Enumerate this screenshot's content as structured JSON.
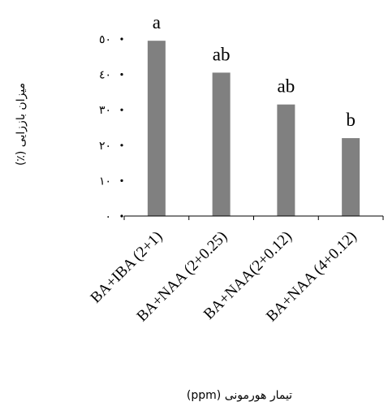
{
  "chart_data": {
    "type": "bar",
    "categories": [
      "BA+IBA (2+1)",
      "BA+NAA (2+0.25)",
      "BA+NAA(2+0.12)",
      "BA+NAA (4+0.12)"
    ],
    "values": [
      49.5,
      40.5,
      31.5,
      22
    ],
    "significance_letters": [
      "a",
      "ab",
      "ab",
      "b"
    ],
    "y_ticks": [
      0,
      10,
      20,
      30,
      40,
      50
    ],
    "y_tick_labels": [
      "٠",
      "١٠",
      "٢٠",
      "٣٠",
      "٤٠",
      "٥٠"
    ],
    "ylim": [
      0,
      50
    ],
    "xlabel": "تیمار هورمونی (ppm)",
    "ylabel": "میزان باززایی (٪)",
    "grid": false,
    "colors": {
      "bar": "#808080",
      "axis": "#000000"
    }
  }
}
